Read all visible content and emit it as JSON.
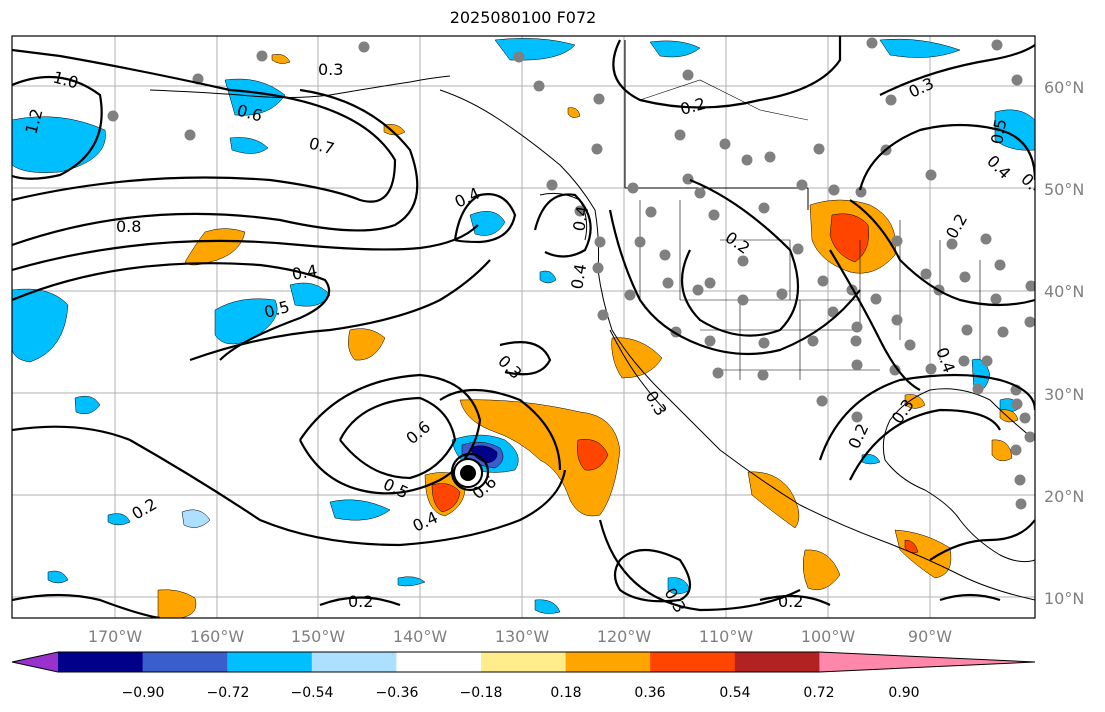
{
  "title": "2025080100 F072",
  "map": {
    "lat_labels": [
      "60°N",
      "50°N",
      "40°N",
      "30°N",
      "20°N",
      "10°N"
    ],
    "lon_labels": [
      "170°W",
      "160°W",
      "150°W",
      "140°W",
      "130°W",
      "120°W",
      "110°W",
      "100°W",
      "90°W"
    ],
    "contour_labels": [
      "1.0",
      "1.2",
      "0.3",
      "0.6",
      "0.7",
      "0.8",
      "0.4",
      "0.5",
      "0.4",
      "0.3",
      "0.6",
      "0.5",
      "0.4",
      "0.6",
      "0.2",
      "0.2",
      "0.3",
      "0.2",
      "0.2",
      "0.4",
      "0.3",
      "0.2",
      "0.3",
      "0.4",
      "0.5",
      "0.4",
      "0.2",
      "0.4",
      "0.2",
      "0.3",
      "0.4"
    ],
    "cyclone_marker": "cyclone-center"
  },
  "colorbar": {
    "ticks": [
      "−0.90",
      "−0.72",
      "−0.54",
      "−0.36",
      "−0.18",
      "0.18",
      "0.36",
      "0.54",
      "0.72",
      "0.90"
    ],
    "colors": [
      "#9932CC",
      "#00008B",
      "#3A5FCD",
      "#00BFFF",
      "#ADDFFF",
      "#FFFFFF",
      "#FFEC8B",
      "#FFA500",
      "#FF4500",
      "#B22222",
      "#FF88AA"
    ]
  }
}
